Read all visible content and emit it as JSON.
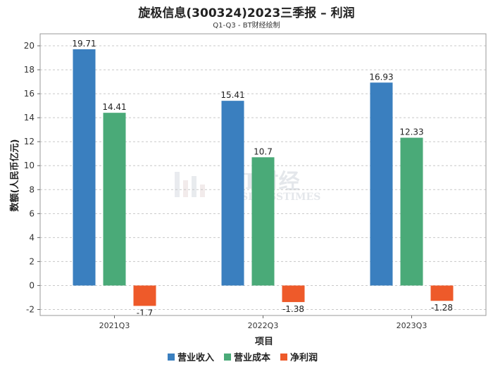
{
  "chart_data": {
    "type": "bar",
    "title": "旋极信息(300324)2023三季报 – 利润",
    "subtitle": "Q1-Q3 - BT财经绘制",
    "xlabel": "项目",
    "ylabel": "数额(人民币亿元)",
    "categories": [
      "2021Q3",
      "2022Q3",
      "2023Q3"
    ],
    "series": [
      {
        "name": "营业收入",
        "color": "#3a7fbf",
        "values": [
          19.71,
          15.41,
          16.93
        ]
      },
      {
        "name": "营业成本",
        "color": "#4aaa78",
        "values": [
          14.41,
          10.7,
          12.33
        ]
      },
      {
        "name": "净利润",
        "color": "#ee5a2a",
        "values": [
          -1.7,
          -1.38,
          -1.28
        ]
      }
    ],
    "ylim": [
      -2.5,
      21
    ],
    "yticks": [
      -2,
      0,
      2,
      4,
      6,
      8,
      10,
      12,
      14,
      16,
      18,
      20
    ],
    "grid": true,
    "legend": "bottom-center",
    "watermark": {
      "main": "BT财经",
      "sub": "BUSINESSTIMES"
    }
  }
}
